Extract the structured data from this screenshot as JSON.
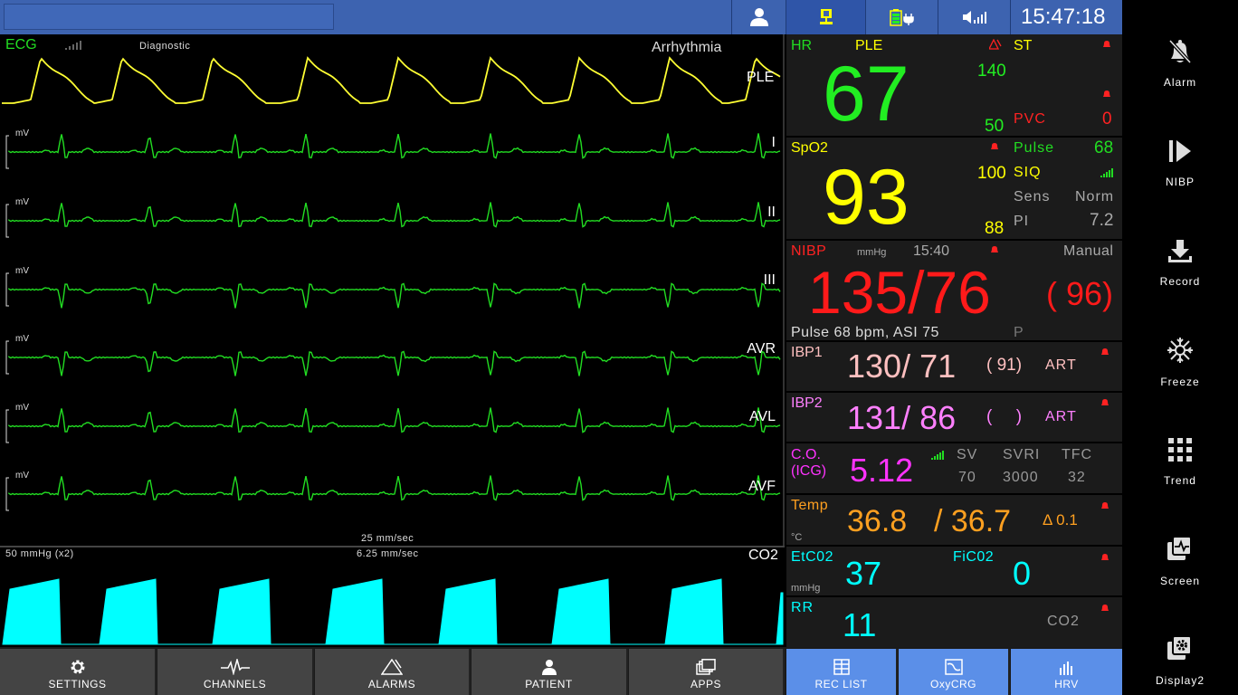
{
  "header": {
    "clock": "15:47:18",
    "patient_name": ""
  },
  "waveforms": {
    "ecg_title": "ECG",
    "ecg_mode": "Diagnostic",
    "arrhythmia": "Arrhythmia",
    "ple_label": "PLE",
    "leads": [
      "I",
      "II",
      "III",
      "AVR",
      "AVL",
      "AVF"
    ],
    "unit": "mV",
    "ecg_speed": "25 mm/sec",
    "co2_scale": "50 mmHg (x2)",
    "co2_speed": "6.25 mm/sec",
    "co2_label": "CO2"
  },
  "hr": {
    "label": "HR",
    "source": "PLE",
    "value": "67",
    "high": "140",
    "low": "50"
  },
  "st": {
    "label": "ST",
    "pvc_label": "PVC",
    "pvc_value": "0"
  },
  "spo2": {
    "label": "SpO2",
    "value": "93",
    "high": "100",
    "low": "88",
    "pulse_label": "Pulse",
    "pulse_value": "68",
    "siq_label": "SIQ",
    "sens_label": "Sens",
    "sens_value": "Norm",
    "pi_label": "PI",
    "pi_value": "7.2"
  },
  "nibp": {
    "label": "NIBP",
    "unit": "mmHg",
    "time": "15:40",
    "mode": "Manual",
    "value": "135/76",
    "mean": "( 96)",
    "pulse_text": "Pulse 68 bpm, ASI 75",
    "p_label": "P"
  },
  "ibp1": {
    "label": "IBP1",
    "value": "130/ 71",
    "mean": "( 91)",
    "site": "ART"
  },
  "ibp2": {
    "label": "IBP2",
    "value": "131/ 86",
    "mean": "(     )",
    "site": "ART"
  },
  "co": {
    "label_line1": "C.O.",
    "label_line2": "(ICG)",
    "value": "5.12",
    "sv_label": "SV",
    "sv_value": "70",
    "svri_label": "SVRI",
    "svri_value": "3000",
    "tfc_label": "TFC",
    "tfc_value": "32"
  },
  "temp": {
    "label": "Temp",
    "unit": "°C",
    "value1": "36.8",
    "value2": "/ 36.7",
    "delta": "Δ 0.1"
  },
  "etco2": {
    "label": "EtC02",
    "unit": "mmHg",
    "value": "37",
    "fi_label": "FiC02",
    "fi_value": "0"
  },
  "rr": {
    "label": "RR",
    "value": "11",
    "source": "CO2"
  },
  "bottom_buttons": {
    "settings": "SETTINGS",
    "channels": "CHANNELS",
    "alarms": "ALARMS",
    "patient": "PATIENT",
    "apps": "APPS",
    "rec_list": "REC LIST",
    "oxycrg": "OxyCRG",
    "hrv": "HRV"
  },
  "sidebar": {
    "alarm": "Alarm",
    "nibp": "NIBP",
    "record": "Record",
    "freeze": "Freeze",
    "trend": "Trend",
    "screen": "Screen",
    "display2": "Display2"
  },
  "colors": {
    "ecg": "#22dd22",
    "spo2": "#ffff00",
    "nibp": "#ff1a1a",
    "ibp1": "#ffc0c0",
    "ibp2": "#ff80ff",
    "co": "#ff33ff",
    "temp": "#ffa020",
    "co2": "#00ffff",
    "accent": "#3d63b0"
  }
}
